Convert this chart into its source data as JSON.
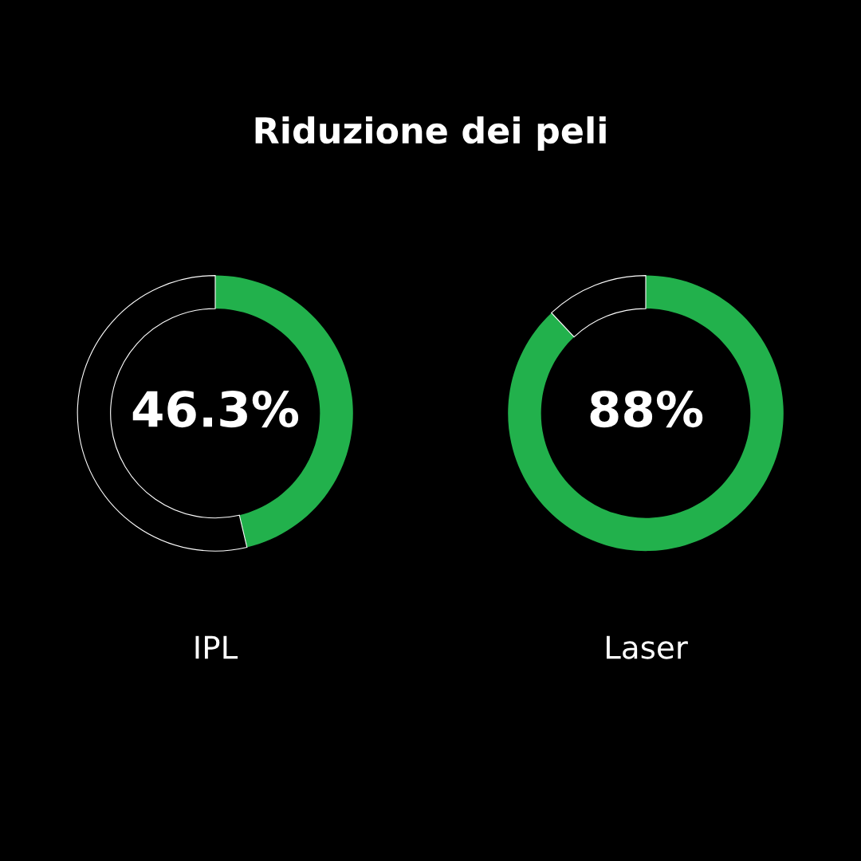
{
  "chart_data": [
    {
      "type": "donut",
      "title": "Riduzione dei peli",
      "xlabel": "IPL",
      "categories": [
        null,
        null
      ],
      "values": [
        46.3,
        53.7
      ],
      "colors": [
        "#22b14c",
        "#000000"
      ],
      "value_labels": [
        "46.3%",
        null
      ]
    },
    {
      "type": "donut",
      "xlabel": "Laser",
      "categories": [
        null,
        null
      ],
      "values": [
        88,
        12
      ],
      "colors": [
        "#22b14c",
        "#000000"
      ],
      "value_labels": [
        "88%",
        null
      ]
    }
  ]
}
